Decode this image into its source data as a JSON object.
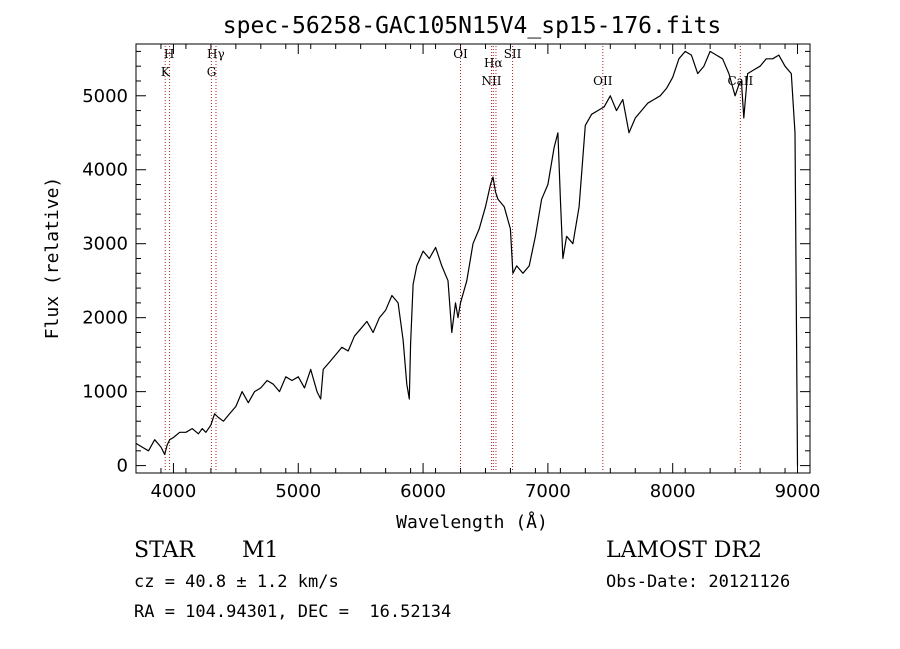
{
  "chart_data": {
    "type": "line",
    "title": "spec-56258-GAC105N15V4_sp15-176.fits",
    "xlabel": "Wavelength (Å)",
    "ylabel": "Flux (relative)",
    "xlim": [
      3700,
      9100
    ],
    "ylim": [
      -100,
      5700
    ],
    "xticks": [
      4000,
      5000,
      6000,
      7000,
      8000,
      9000
    ],
    "yticks": [
      0,
      1000,
      2000,
      3000,
      4000,
      5000
    ],
    "grid": false,
    "line_color": "#000000",
    "marker_color": "#b22222",
    "series": [
      {
        "x": [
          3700,
          3750,
          3800,
          3850,
          3900,
          3930,
          3950,
          3970,
          4000,
          4050,
          4100,
          4150,
          4200,
          4230,
          4260,
          4300,
          4330,
          4360,
          4400,
          4450,
          4500,
          4550,
          4600,
          4650,
          4700,
          4750,
          4800,
          4850,
          4900,
          4950,
          5000,
          5050,
          5100,
          5150,
          5180,
          5200,
          5250,
          5300,
          5350,
          5400,
          5450,
          5500,
          5550,
          5600,
          5650,
          5700,
          5750,
          5800,
          5840,
          5870,
          5890,
          5900,
          5920,
          5950,
          6000,
          6050,
          6100,
          6150,
          6200,
          6230,
          6260,
          6280,
          6300,
          6350,
          6400,
          6450,
          6500,
          6540,
          6560,
          6580,
          6600,
          6650,
          6700,
          6720,
          6750,
          6800,
          6850,
          6900,
          6950,
          7000,
          7050,
          7080,
          7100,
          7120,
          7150,
          7200,
          7250,
          7300,
          7350,
          7400,
          7450,
          7500,
          7550,
          7600,
          7650,
          7700,
          7750,
          7800,
          7850,
          7900,
          7950,
          8000,
          8050,
          8100,
          8150,
          8200,
          8250,
          8300,
          8350,
          8400,
          8450,
          8500,
          8530,
          8550,
          8570,
          8600,
          8650,
          8700,
          8750,
          8800,
          8850,
          8900,
          8950,
          8980,
          9000
        ],
        "y": [
          300,
          250,
          200,
          350,
          250,
          150,
          280,
          350,
          380,
          450,
          450,
          500,
          430,
          500,
          450,
          550,
          700,
          650,
          600,
          700,
          800,
          1000,
          850,
          1000,
          1050,
          1150,
          1100,
          1000,
          1200,
          1150,
          1200,
          1050,
          1300,
          1000,
          900,
          1300,
          1400,
          1500,
          1600,
          1550,
          1750,
          1850,
          1950,
          1800,
          2000,
          2100,
          2300,
          2200,
          1700,
          1100,
          900,
          1650,
          2450,
          2700,
          2900,
          2800,
          2950,
          2700,
          2500,
          1800,
          2200,
          2000,
          2200,
          2500,
          3000,
          3200,
          3500,
          3800,
          3900,
          3700,
          3600,
          3500,
          3200,
          2600,
          2700,
          2600,
          2700,
          3100,
          3600,
          3800,
          4300,
          4500,
          3600,
          2800,
          3100,
          3000,
          3500,
          4600,
          4750,
          4800,
          4850,
          5000,
          4800,
          4950,
          4500,
          4700,
          4800,
          4900,
          4950,
          5000,
          5100,
          5250,
          5500,
          5600,
          5550,
          5300,
          5400,
          5600,
          5550,
          5500,
          5300,
          5000,
          5150,
          5200,
          4700,
          5300,
          5350,
          5400,
          5500,
          5500,
          5550,
          5400,
          5300,
          4500,
          0
        ]
      }
    ],
    "line_markers": [
      {
        "x": 3934,
        "label": ""
      },
      {
        "x": 3969,
        "label": ""
      },
      {
        "x": 4304,
        "label": ""
      },
      {
        "x": 4341,
        "label": ""
      },
      {
        "x": 6300,
        "label": ""
      },
      {
        "x": 6548,
        "label": ""
      },
      {
        "x": 6563,
        "label": ""
      },
      {
        "x": 6584,
        "label": ""
      },
      {
        "x": 6717,
        "label": ""
      },
      {
        "x": 7440,
        "label": ""
      },
      {
        "x": 8542,
        "label": ""
      }
    ],
    "annotations": [
      {
        "text": "H",
        "x": 3965,
        "row": 1
      },
      {
        "text": "K",
        "x": 3935,
        "row": 2
      },
      {
        "text": "Hγ",
        "x": 4340,
        "row": 1
      },
      {
        "text": "G",
        "x": 4305,
        "row": 2
      },
      {
        "text": "OI",
        "x": 6300,
        "row": 1
      },
      {
        "text": "SII",
        "x": 6717,
        "row": 1
      },
      {
        "text": "Hα",
        "x": 6563,
        "row": 1.5
      },
      {
        "text": "NII",
        "x": 6548,
        "row": 2.5
      },
      {
        "text": "OII",
        "x": 7440,
        "row": 2.5
      },
      {
        "text": "CaII",
        "x": 8542,
        "row": 2.5
      }
    ]
  },
  "info": {
    "class_label": "STAR",
    "subclass": "M1",
    "survey": "LAMOST DR2",
    "redshift": "cz = 40.8 ± 1.2 km/s",
    "obs_date": "Obs-Date: 20121126",
    "coords": "RA = 104.94301, DEC =  16.52134"
  }
}
